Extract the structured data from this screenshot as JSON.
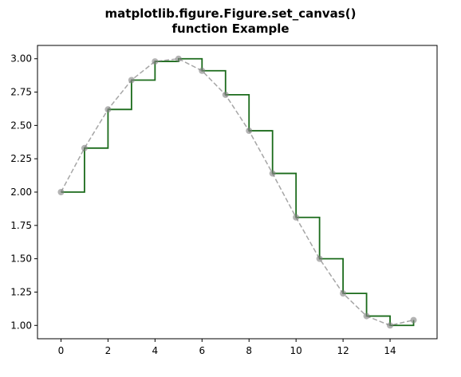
{
  "chart_data": {
    "type": "line",
    "title_lines": [
      "matplotlib.figure.Figure.set_canvas()",
      "function Example"
    ],
    "xlabel": "",
    "ylabel": "",
    "xlim": [
      -1,
      16
    ],
    "ylim": [
      0.9,
      3.1
    ],
    "x_ticks": [
      0,
      2,
      4,
      6,
      8,
      10,
      12,
      14
    ],
    "x_tick_labels": [
      "0",
      "2",
      "4",
      "6",
      "8",
      "10",
      "12",
      "14"
    ],
    "y_ticks": [
      1.0,
      1.25,
      1.5,
      1.75,
      2.0,
      2.25,
      2.5,
      2.75,
      3.0
    ],
    "y_tick_labels": [
      "1.00",
      "1.25",
      "1.50",
      "1.75",
      "2.00",
      "2.25",
      "2.50",
      "2.75",
      "3.00"
    ],
    "grid": false,
    "x": [
      0,
      1,
      2,
      3,
      4,
      5,
      6,
      7,
      8,
      9,
      10,
      11,
      12,
      13,
      14,
      15
    ],
    "series": [
      {
        "style": "step-post",
        "color": "#1b6b1b",
        "values": [
          2.0,
          2.33,
          2.62,
          2.84,
          2.98,
          3.0,
          2.91,
          2.73,
          2.46,
          2.14,
          1.81,
          1.5,
          1.24,
          1.07,
          1.0,
          1.04
        ]
      },
      {
        "style": "dashed-markers",
        "color": "#808080",
        "values": [
          2.0,
          2.33,
          2.62,
          2.84,
          2.98,
          3.0,
          2.91,
          2.73,
          2.46,
          2.14,
          1.81,
          1.5,
          1.24,
          1.07,
          1.0,
          1.04
        ]
      }
    ]
  }
}
